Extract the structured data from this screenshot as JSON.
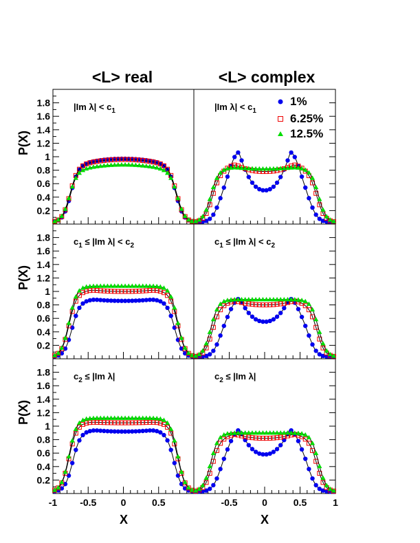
{
  "column_titles": [
    "<L> real",
    "<L> complex"
  ],
  "ylabel": "P(X)",
  "xlabel": "X",
  "legend": {
    "placement": "top-right",
    "entries": [
      "1%",
      "6.25%",
      "12.5%"
    ]
  },
  "colors": {
    "s1": "#0000ee",
    "s2": "#ee0000",
    "s3": "#00dd00",
    "line": "#000000"
  },
  "row_conditions": [
    {
      "pre": "",
      "pre_sub": "",
      "mid": "|Im λ| < c",
      "post_sub": "1"
    },
    {
      "pre": "c",
      "pre_sub": "1",
      "mid": " ≤ |Im λ| < c",
      "post_sub": "2"
    },
    {
      "pre": "c",
      "pre_sub": "2",
      "mid": " ≤ |Im λ|",
      "post_sub": ""
    }
  ],
  "yticks": [
    "0.2",
    "0.4",
    "0.6",
    "0.8",
    "1",
    "1.2",
    "1.4",
    "1.6",
    "1.8"
  ],
  "xticks_left": [
    "-1",
    "-0.5",
    "0",
    "0.5"
  ],
  "xticks_right": [
    "-0.5",
    "0",
    "0.5",
    "1"
  ],
  "chart_data": {
    "type": "scatter",
    "xlim": [
      -1,
      1
    ],
    "ylim": [
      0,
      2.0
    ],
    "grid": false,
    "series_names": [
      "1%",
      "6.25%",
      "12.5%"
    ],
    "panels": [
      {
        "row": 0,
        "col": 0,
        "peaks": [
          0.97,
          0.96,
          0.88
        ],
        "dip": [
          0.0,
          0.0,
          0.0
        ],
        "edge": [
          0.75,
          0.76,
          0.77
        ]
      },
      {
        "row": 0,
        "col": 1,
        "peaks": [
          1.07,
          0.88,
          0.84
        ],
        "dip": [
          0.5,
          0.78,
          0.82
        ],
        "edge": [
          0.66,
          0.74,
          0.76
        ]
      },
      {
        "row": 1,
        "col": 0,
        "peaks": [
          0.88,
          1.02,
          1.08
        ],
        "dip": [
          0.86,
          1.0,
          1.08
        ],
        "edge": [
          0.73,
          0.77,
          0.77
        ]
      },
      {
        "row": 1,
        "col": 1,
        "peaks": [
          0.9,
          0.86,
          0.88
        ],
        "dip": [
          0.55,
          0.8,
          0.88
        ],
        "edge": [
          0.64,
          0.74,
          0.76
        ]
      },
      {
        "row": 2,
        "col": 0,
        "peaks": [
          0.94,
          1.06,
          1.12
        ],
        "dip": [
          0.92,
          1.05,
          1.12
        ],
        "edge": [
          0.72,
          0.77,
          0.77
        ]
      },
      {
        "row": 2,
        "col": 1,
        "peaks": [
          0.95,
          0.88,
          0.9
        ],
        "dip": [
          0.58,
          0.82,
          0.9
        ],
        "edge": [
          0.64,
          0.74,
          0.76
        ]
      }
    ]
  }
}
